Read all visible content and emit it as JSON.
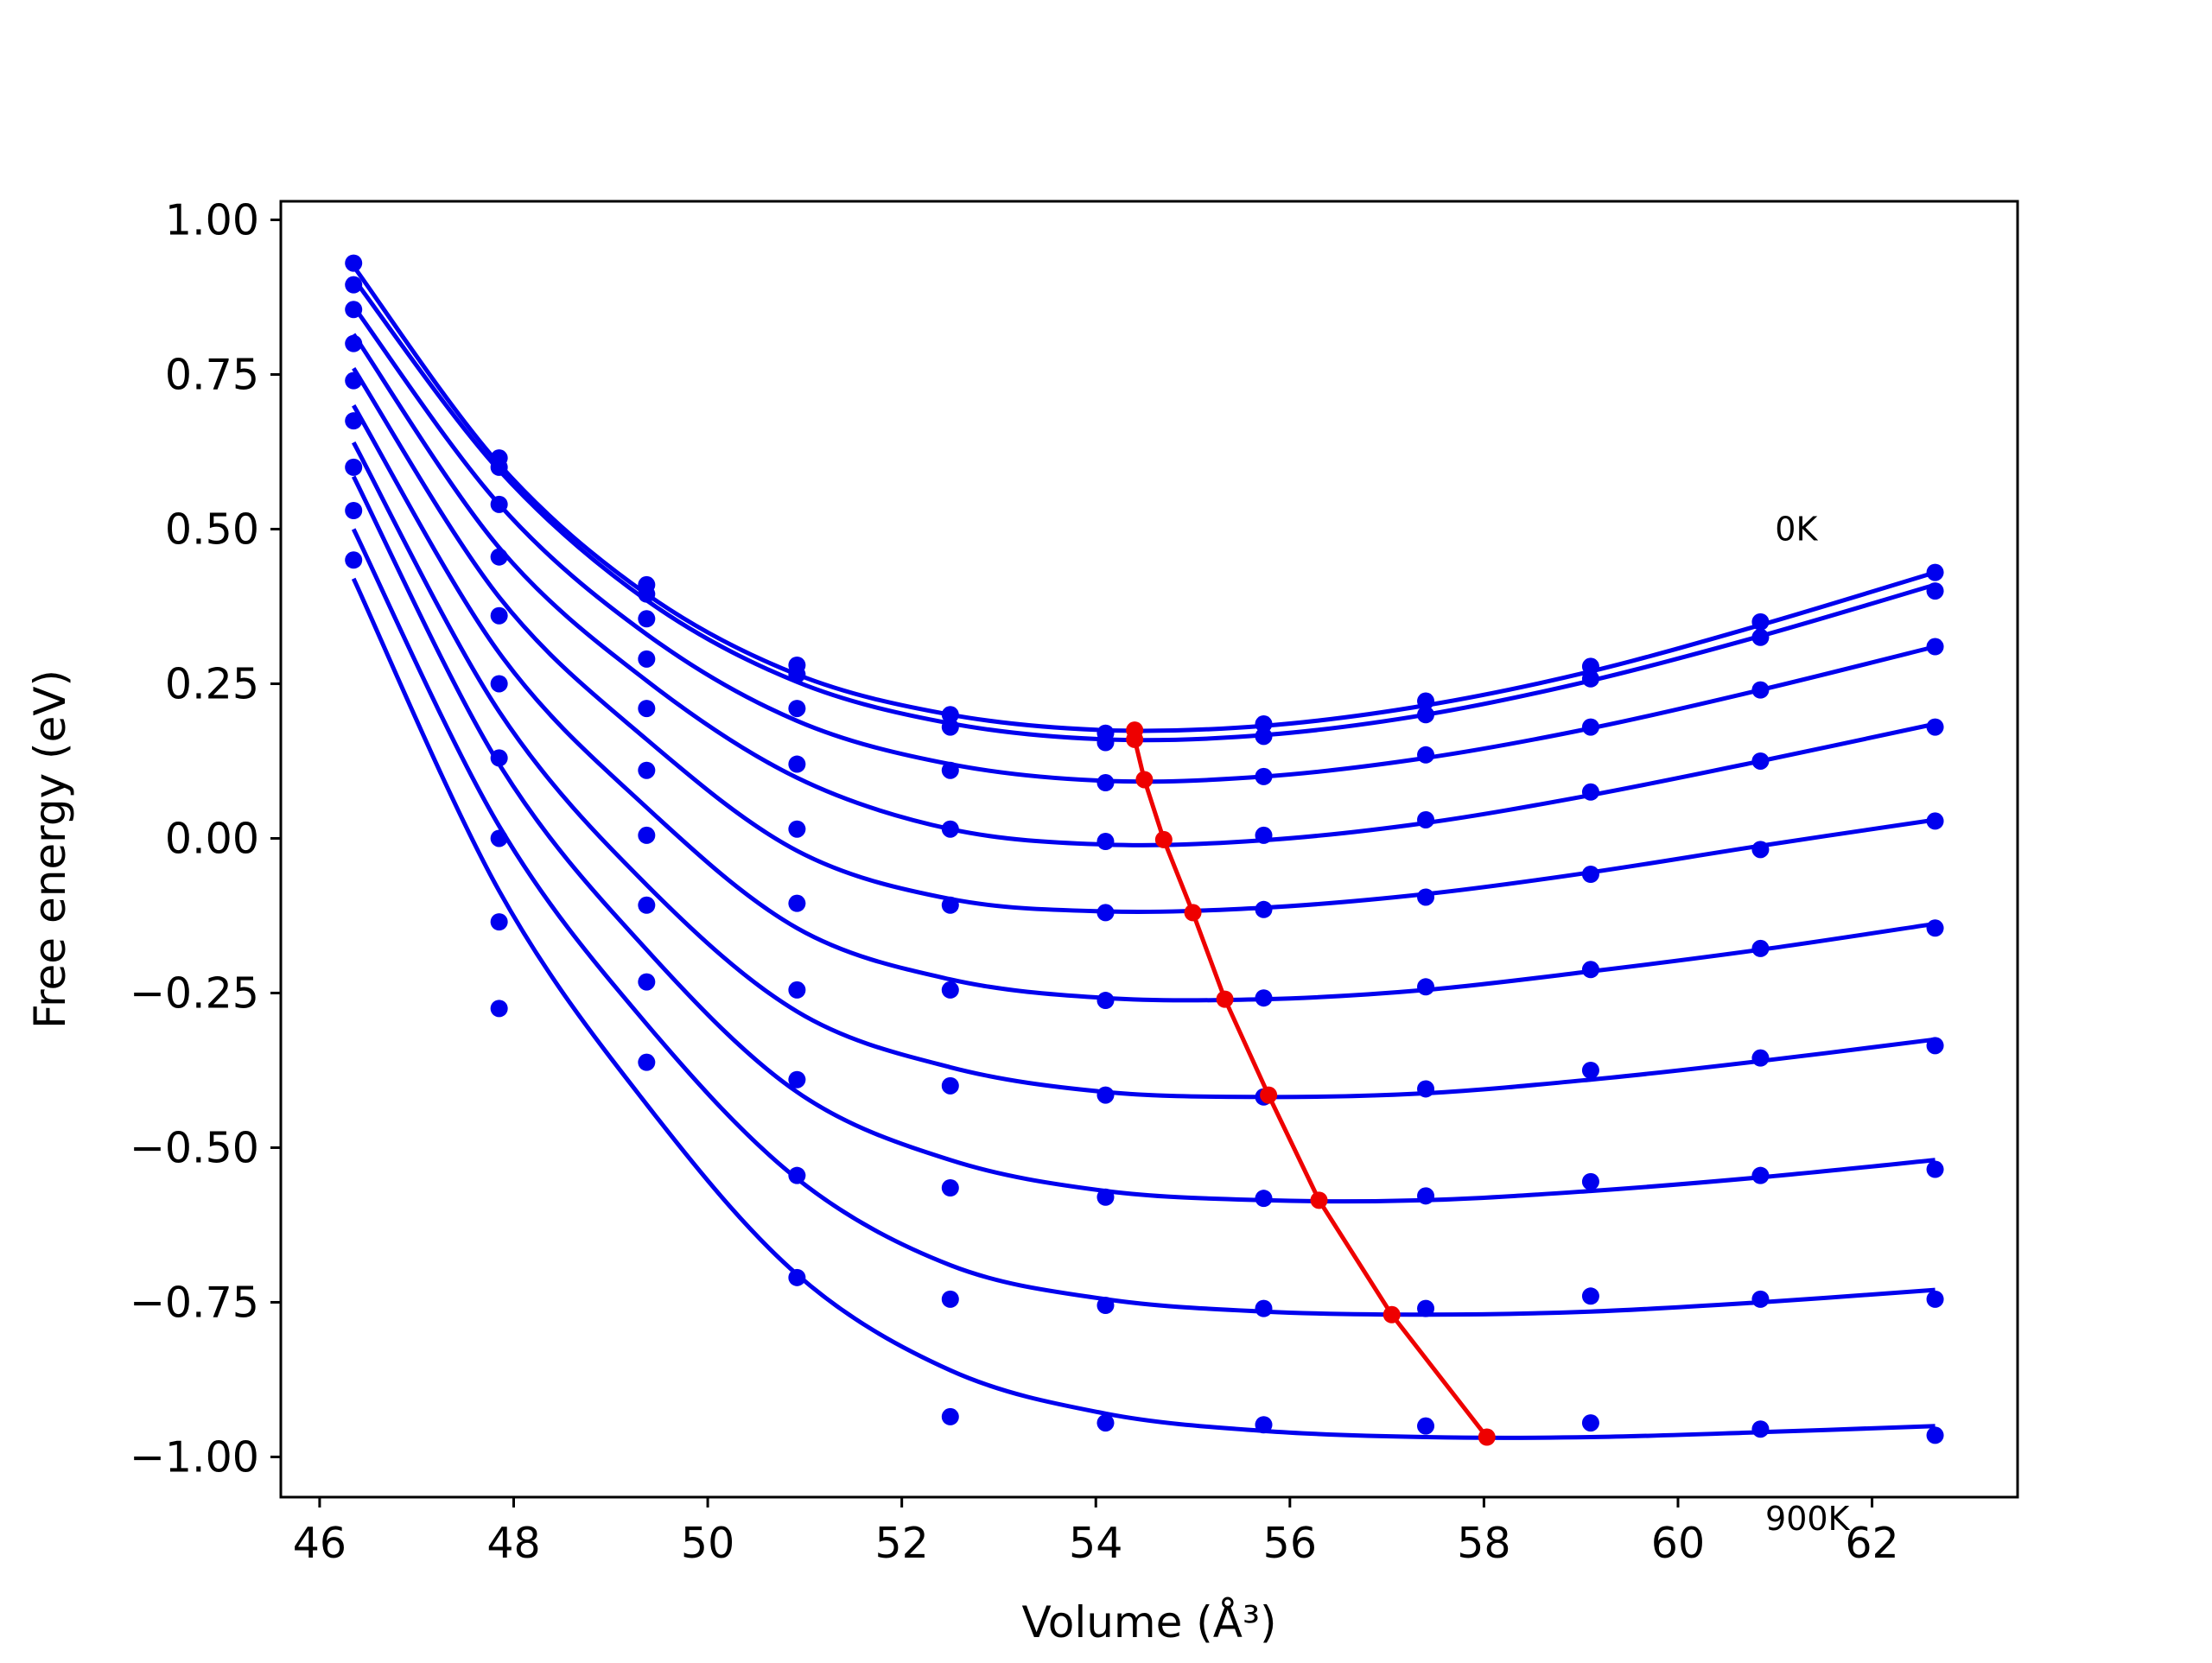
{
  "chart_data": {
    "type": "line",
    "title": "",
    "xlabel": "Volume (Å³)",
    "ylabel": "Free energy (eV)",
    "xlim": [
      45.6,
      63.5
    ],
    "ylim": [
      -1.065,
      1.03
    ],
    "xticks": [
      46,
      48,
      50,
      52,
      54,
      56,
      58,
      60,
      62
    ],
    "yticks": [
      -1.0,
      -0.75,
      -0.5,
      -0.25,
      0.0,
      0.25,
      0.5,
      0.75,
      1.0
    ],
    "ytick_labels": [
      "−1.00",
      "−0.75",
      "−0.50",
      "−0.25",
      "0.00",
      "0.25",
      "0.50",
      "0.75",
      "1.00"
    ],
    "grid": false,
    "colors": {
      "curves": "#0000ee",
      "points": "#0000ee",
      "minimum_line": "#ee0000",
      "axes": "#000000"
    },
    "annotations": [
      {
        "text": "0K",
        "x": 61.0,
        "y": 0.5
      },
      {
        "text": "900K",
        "x": 60.9,
        "y": -1.1
      }
    ],
    "volumes": [
      46.35,
      47.85,
      49.37,
      50.92,
      52.5,
      54.1,
      55.73,
      57.4,
      59.1,
      60.85,
      62.65
    ],
    "series": [
      {
        "points": [
          0.93,
          0.615,
          0.41,
          0.28,
          0.2,
          0.17,
          0.185,
          0.222,
          0.278,
          0.35,
          0.43
        ],
        "fit": [
          0.925,
          0.605,
          0.395,
          0.265,
          0.2,
          0.175,
          0.182,
          0.215,
          0.27,
          0.345,
          0.43
        ]
      },
      {
        "points": [
          0.895,
          0.6,
          0.395,
          0.265,
          0.18,
          0.155,
          0.165,
          0.2,
          0.258,
          0.325,
          0.4
        ],
        "fit": [
          0.905,
          0.595,
          0.385,
          0.253,
          0.186,
          0.16,
          0.167,
          0.2,
          0.255,
          0.327,
          0.41
        ]
      },
      {
        "points": [
          0.855,
          0.54,
          0.355,
          0.21,
          0.11,
          0.09,
          0.1,
          0.135,
          0.18,
          0.24,
          0.31
        ],
        "fit": [
          0.86,
          0.54,
          0.33,
          0.19,
          0.12,
          0.093,
          0.1,
          0.13,
          0.178,
          0.24,
          0.31
        ]
      },
      {
        "points": [
          0.8,
          0.455,
          0.29,
          0.12,
          0.015,
          -0.005,
          0.005,
          0.03,
          0.075,
          0.125,
          0.18
        ],
        "fit": [
          0.815,
          0.47,
          0.255,
          0.098,
          0.015,
          -0.01,
          -0.003,
          0.025,
          0.07,
          0.125,
          0.185
        ]
      },
      {
        "points": [
          0.74,
          0.36,
          0.21,
          0.015,
          -0.108,
          -0.12,
          -0.115,
          -0.095,
          -0.058,
          -0.018,
          0.028
        ],
        "fit": [
          0.76,
          0.39,
          0.16,
          -0.02,
          -0.098,
          -0.118,
          -0.112,
          -0.09,
          -0.055,
          -0.012,
          0.03
        ]
      },
      {
        "points": [
          0.675,
          0.25,
          0.11,
          -0.105,
          -0.245,
          -0.262,
          -0.258,
          -0.24,
          -0.212,
          -0.178,
          -0.145
        ],
        "fit": [
          0.7,
          0.3,
          0.05,
          -0.145,
          -0.228,
          -0.258,
          -0.26,
          -0.245,
          -0.215,
          -0.18,
          -0.138
        ]
      },
      {
        "points": [
          0.6,
          0.13,
          0.005,
          -0.245,
          -0.4,
          -0.415,
          -0.418,
          -0.405,
          -0.375,
          -0.355,
          -0.335
        ],
        "fit": [
          0.64,
          0.205,
          -0.075,
          -0.28,
          -0.37,
          -0.41,
          -0.418,
          -0.412,
          -0.39,
          -0.36,
          -0.325
        ]
      },
      {
        "points": [
          0.53,
          0.0,
          -0.108,
          -0.39,
          -0.565,
          -0.58,
          -0.582,
          -0.578,
          -0.555,
          -0.545,
          -0.535
        ],
        "fit": [
          0.585,
          0.12,
          -0.18,
          -0.41,
          -0.52,
          -0.57,
          -0.585,
          -0.585,
          -0.57,
          -0.548,
          -0.52
        ]
      },
      {
        "points": [
          0.45,
          -0.135,
          -0.232,
          -0.545,
          -0.745,
          -0.755,
          -0.76,
          -0.76,
          -0.74,
          -0.745,
          -0.745
        ],
        "fit": [
          0.5,
          0.02,
          -0.3,
          -0.55,
          -0.69,
          -0.745,
          -0.765,
          -0.77,
          -0.765,
          -0.75,
          -0.73
        ]
      },
      {
        "points": [
          null,
          -0.275,
          -0.362,
          -0.71,
          -0.935,
          -0.945,
          -0.948,
          -0.95,
          -0.945,
          -0.955,
          -0.965
        ],
        "fit": [
          0.42,
          -0.085,
          -0.43,
          -0.705,
          -0.86,
          -0.93,
          -0.958,
          -0.968,
          -0.968,
          -0.96,
          -0.95
        ]
      }
    ],
    "minimum_path": {
      "x": [
        54.4,
        54.4,
        54.5,
        54.7,
        55.0,
        55.33,
        55.78,
        56.3,
        57.05,
        58.03
      ],
      "y": [
        0.175,
        0.16,
        0.095,
        -0.002,
        -0.12,
        -0.26,
        -0.415,
        -0.585,
        -0.77,
        -0.968
      ]
    }
  }
}
